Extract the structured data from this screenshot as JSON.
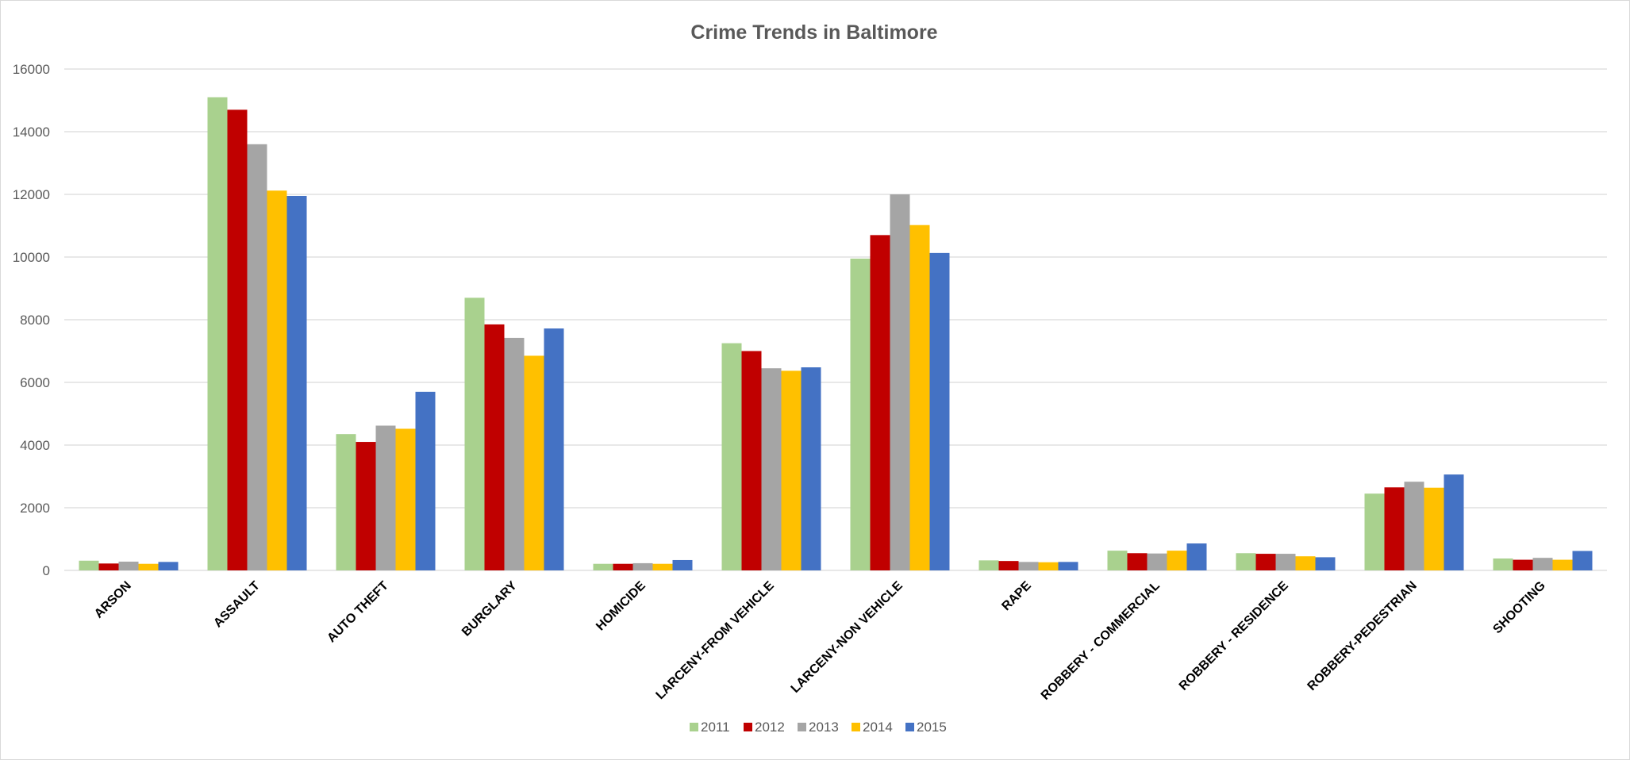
{
  "chart_data": {
    "type": "bar",
    "title": "Crime Trends in Baltimore",
    "xlabel": "",
    "ylabel": "",
    "ylim": [
      0,
      16000
    ],
    "yticks": [
      "0",
      "2000",
      "4000",
      "6000",
      "8000",
      "10000",
      "12000",
      "14000",
      "16000"
    ],
    "grid": true,
    "legend_position": "bottom",
    "categories": [
      "ARSON",
      "ASSAULT",
      "AUTO THEFT",
      "BURGLARY",
      "HOMICIDE",
      "LARCENY-FROM VEHICLE",
      "LARCENY-NON VEHICLE",
      "RAPE",
      "ROBBERY - COMMERCIAL",
      "ROBBERY - RESIDENCE",
      "ROBBERY-PEDESTRIAN",
      "SHOOTING"
    ],
    "series": [
      {
        "name": "2011",
        "color": "#a9d18e",
        "values": [
          310,
          15100,
          4350,
          8700,
          210,
          7250,
          9950,
          320,
          630,
          550,
          2450,
          380
        ]
      },
      {
        "name": "2012",
        "color": "#c00000",
        "values": [
          220,
          14700,
          4100,
          7850,
          210,
          7000,
          10700,
          300,
          550,
          530,
          2650,
          340
        ]
      },
      {
        "name": "2013",
        "color": "#a5a5a5",
        "values": [
          280,
          13600,
          4620,
          7420,
          230,
          6450,
          12000,
          270,
          540,
          530,
          2830,
          400
        ]
      },
      {
        "name": "2014",
        "color": "#ffc000",
        "values": [
          210,
          12120,
          4520,
          6850,
          210,
          6370,
          11020,
          260,
          630,
          450,
          2640,
          340
        ]
      },
      {
        "name": "2015",
        "color": "#4472c4",
        "values": [
          270,
          11950,
          5700,
          7720,
          330,
          6480,
          10130,
          270,
          860,
          420,
          3060,
          620
        ]
      }
    ]
  }
}
